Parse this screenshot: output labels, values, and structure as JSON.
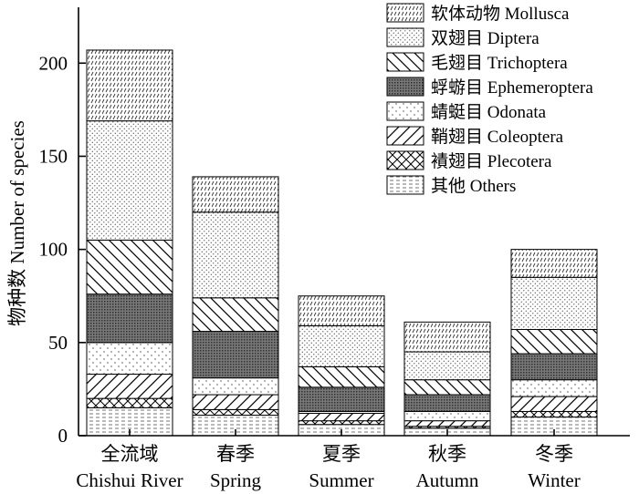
{
  "chart_data": {
    "type": "bar",
    "stacked": true,
    "ylabel": "物种数 Number of species",
    "xlabel": "",
    "ylim": [
      0,
      220
    ],
    "yticks": [
      0,
      50,
      100,
      150,
      200
    ],
    "categories": [
      {
        "zh": "全流域",
        "en": "Chishui River"
      },
      {
        "zh": "春季",
        "en": "Spring"
      },
      {
        "zh": "夏季",
        "en": "Summer"
      },
      {
        "zh": "秋季",
        "en": "Autumn"
      },
      {
        "zh": "冬季",
        "en": "Winter"
      }
    ],
    "series": [
      {
        "name": "其他 Others",
        "pattern": "pat-others",
        "values": [
          15,
          11,
          6,
          4,
          10
        ]
      },
      {
        "name": "襀翅目 Plecotera",
        "pattern": "pat-plecoptera",
        "values": [
          5,
          3,
          2,
          1,
          3
        ]
      },
      {
        "name": "鞘翅目 Coleoptera",
        "pattern": "pat-coleoptera",
        "values": [
          13,
          8,
          4,
          3,
          8
        ]
      },
      {
        "name": "蜻蜓目 Odonata",
        "pattern": "pat-odonata",
        "values": [
          17,
          9,
          1,
          5,
          9
        ]
      },
      {
        "name": "蜉蝣目 Ephemeroptera",
        "pattern": "pat-ephemeroptera",
        "values": [
          26,
          25,
          13,
          9,
          14
        ]
      },
      {
        "name": "毛翅目 Trichoptera",
        "pattern": "pat-trichoptera",
        "values": [
          29,
          18,
          11,
          8,
          13
        ]
      },
      {
        "name": "双翅目 Diptera",
        "pattern": "pat-diptera",
        "values": [
          64,
          46,
          22,
          15,
          28
        ]
      },
      {
        "name": "软体动物 Mollusca",
        "pattern": "pat-mollusca",
        "values": [
          38,
          19,
          16,
          16,
          15
        ]
      }
    ],
    "legend_order": [
      "软体动物 Mollusca",
      "双翅目 Diptera",
      "毛翅目 Trichoptera",
      "蜉蝣目 Ephemeroptera",
      "蜻蜓目 Odonata",
      "鞘翅目 Coleoptera",
      "襀翅目 Plecotera",
      "其他 Others"
    ],
    "legend_placement": "top-right",
    "grid": false
  }
}
